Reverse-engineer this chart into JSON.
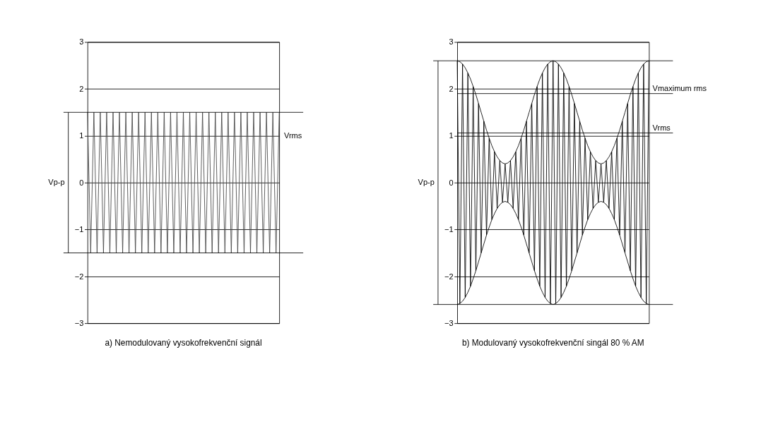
{
  "chart_data": [
    {
      "type": "line",
      "title": "a)  Nemodulovaný vysokofrekvenční signál",
      "ylim": [
        -3,
        3
      ],
      "yticks": [
        -3,
        -2,
        -1,
        0,
        1,
        2,
        3
      ],
      "grid": "y",
      "tick_labels": "y",
      "categories": [
        null,
        null,
        null,
        null,
        null,
        null,
        null,
        null,
        null,
        null,
        null,
        null,
        null,
        null,
        null,
        null,
        null,
        null,
        null,
        null,
        null,
        null,
        null,
        null,
        null,
        null,
        null,
        null,
        null,
        null,
        null,
        null,
        null,
        null,
        null,
        null,
        null,
        null,
        null,
        null,
        null,
        null,
        null,
        null,
        null,
        null,
        null,
        null,
        null,
        null,
        null,
        null,
        null,
        null,
        null,
        null,
        null,
        null,
        null,
        null,
        null
      ],
      "series": [
        {
          "color": "#444444",
          "values": [
            1.5,
            -1.5,
            1.5,
            -1.5,
            1.5,
            -1.5,
            1.5,
            -1.5,
            1.5,
            -1.5,
            1.5,
            -1.5,
            1.5,
            -1.5,
            1.5,
            -1.5,
            1.5,
            -1.5,
            1.5,
            -1.5,
            1.5,
            -1.5,
            1.5,
            -1.5,
            1.5,
            -1.5,
            1.5,
            -1.5,
            1.5,
            -1.5,
            1.5,
            -1.5,
            1.5,
            -1.5,
            1.5,
            -1.5,
            1.5,
            -1.5,
            1.5,
            -1.5,
            1.5,
            -1.5,
            1.5,
            -1.5,
            1.5,
            -1.5,
            1.5,
            -1.5,
            1.5,
            -1.5,
            1.5,
            -1.5,
            1.5,
            -1.5,
            1.5,
            -1.5,
            1.5,
            -1.5,
            1.5,
            -1.5,
            1.5
          ]
        }
      ],
      "ref_lines": [
        {
          "axis": "y",
          "value": 1.5
        },
        {
          "axis": "y",
          "value": -1.5
        }
      ],
      "annotations": [
        "Vrms",
        "Vp-p"
      ]
    },
    {
      "type": "line",
      "title": "b)  Modulovaný vysokofrekvenční singál 80 % AM",
      "ylim": [
        -3,
        3
      ],
      "yticks": [
        -3,
        -2,
        -1,
        0,
        1,
        2,
        3
      ],
      "grid": "y",
      "tick_labels": "y",
      "categories": [
        null,
        null,
        null,
        null,
        null,
        null,
        null,
        null,
        null,
        null,
        null,
        null,
        null,
        null,
        null,
        null,
        null,
        null,
        null,
        null,
        null,
        null,
        null,
        null,
        null,
        null,
        null,
        null,
        null,
        null,
        null,
        null,
        null,
        null,
        null,
        null,
        null,
        null,
        null,
        null,
        null,
        null,
        null,
        null,
        null,
        null,
        null,
        null,
        null,
        null,
        null,
        null,
        null,
        null,
        null,
        null,
        null,
        null,
        null,
        null,
        null,
        null,
        null,
        null,
        null,
        null,
        null,
        null,
        null,
        null,
        null,
        null,
        null
      ],
      "series": [
        {
          "color": "#000000",
          "values": [
            2.6,
            -2.58,
            2.53,
            -2.45,
            2.34,
            -2.21,
            2.05,
            -1.88,
            1.69,
            -1.5,
            1.31,
            -1.12,
            0.95,
            -0.79,
            0.66,
            -0.55,
            0.47,
            -0.42,
            0.4,
            -0.42,
            0.47,
            -0.55,
            0.66,
            -0.79,
            0.95,
            -1.12,
            1.31,
            -1.5,
            1.69,
            -1.88,
            2.05,
            -2.21,
            2.34,
            -2.45,
            2.53,
            -2.58,
            2.6,
            -2.58,
            2.53,
            -2.45,
            2.34,
            -2.21,
            2.05,
            -1.88,
            1.69,
            -1.5,
            1.31,
            -1.12,
            0.95,
            -0.79,
            0.66,
            -0.55,
            0.47,
            -0.42,
            0.4,
            -0.42,
            0.47,
            -0.55,
            0.66,
            -0.79,
            0.95,
            -1.12,
            1.31,
            -1.5,
            1.69,
            -1.88,
            2.05,
            -2.21,
            2.34,
            -2.45,
            2.53,
            -2.58,
            2.6
          ]
        },
        {
          "color": "#000000",
          "values": [
            2.6,
            2.58,
            2.53,
            2.45,
            2.34,
            2.21,
            2.05,
            1.88,
            1.69,
            1.5,
            1.31,
            1.12,
            0.95,
            0.79,
            0.66,
            0.55,
            0.47,
            0.42,
            0.4,
            0.42,
            0.47,
            0.55,
            0.66,
            0.79,
            0.95,
            1.12,
            1.31,
            1.5,
            1.69,
            1.88,
            2.05,
            2.21,
            2.34,
            2.45,
            2.53,
            2.58,
            2.6,
            2.58,
            2.53,
            2.45,
            2.34,
            2.21,
            2.05,
            1.88,
            1.69,
            1.5,
            1.31,
            1.12,
            0.95,
            0.79,
            0.66,
            0.55,
            0.47,
            0.42,
            0.4,
            0.42,
            0.47,
            0.55,
            0.66,
            0.79,
            0.95,
            1.12,
            1.31,
            1.5,
            1.69,
            1.88,
            2.05,
            2.21,
            2.34,
            2.45,
            2.53,
            2.58,
            2.6
          ]
        },
        {
          "color": "#000000",
          "values": [
            -2.6,
            -2.58,
            -2.53,
            -2.45,
            -2.34,
            -2.21,
            -2.05,
            -1.88,
            -1.69,
            -1.5,
            -1.31,
            -1.12,
            -0.95,
            -0.79,
            -0.66,
            -0.55,
            -0.47,
            -0.42,
            -0.4,
            -0.42,
            -0.47,
            -0.55,
            -0.66,
            -0.79,
            -0.95,
            -1.12,
            -1.31,
            -1.5,
            -1.69,
            -1.88,
            -2.05,
            -2.21,
            -2.34,
            -2.45,
            -2.53,
            -2.58,
            -2.6,
            -2.58,
            -2.53,
            -2.45,
            -2.34,
            -2.21,
            -2.05,
            -1.88,
            -1.69,
            -1.5,
            -1.31,
            -1.12,
            -0.95,
            -0.79,
            -0.66,
            -0.55,
            -0.47,
            -0.42,
            -0.4,
            -0.42,
            -0.47,
            -0.55,
            -0.66,
            -0.79,
            -0.95,
            -1.12,
            -1.31,
            -1.5,
            -1.69,
            -1.88,
            -2.05,
            -2.21,
            -2.34,
            -2.45,
            -2.53,
            -2.58,
            -2.6
          ]
        }
      ],
      "ref_lines": [
        {
          "axis": "y",
          "value": 2.6
        },
        {
          "axis": "y",
          "value": -2.6
        },
        {
          "axis": "y",
          "value": 1.9,
          "label": "Vmaximum rms"
        },
        {
          "axis": "y",
          "value": 1.06,
          "label": "Vrms"
        }
      ],
      "annotations": [
        "Vp-p"
      ]
    }
  ]
}
